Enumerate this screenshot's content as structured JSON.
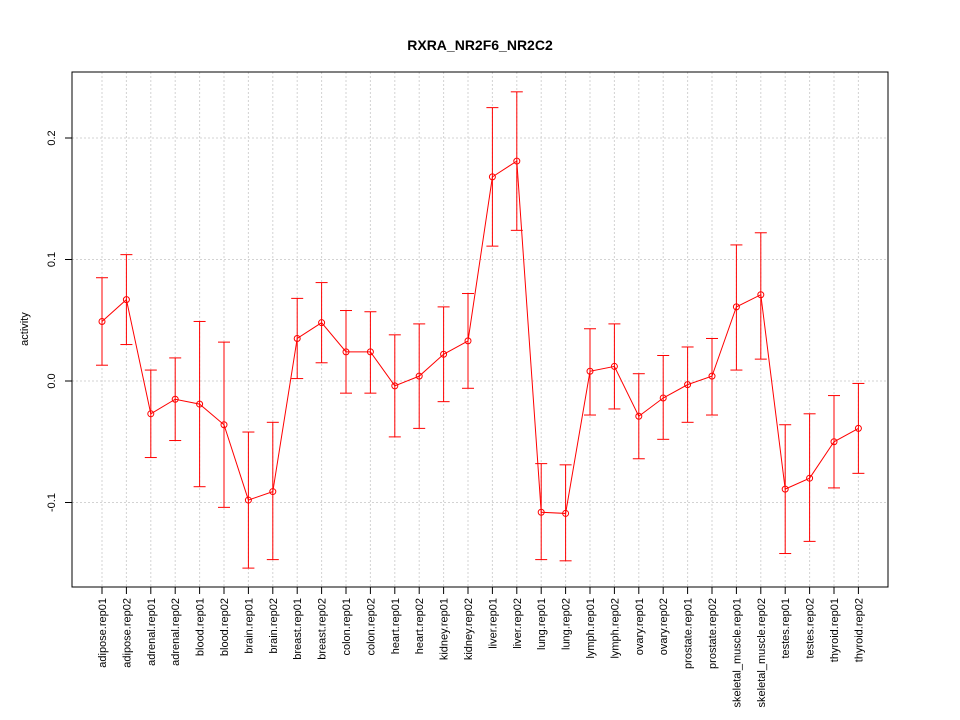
{
  "chart_data": {
    "type": "line",
    "title": "RXRA_NR2F6_NR2C2",
    "xlabel": "",
    "ylabel": "activity",
    "ylim": [
      -0.17,
      0.255
    ],
    "yticks": [
      -0.1,
      0.0,
      0.1,
      0.2
    ],
    "ytick_labels": [
      "-0.1",
      "0.0",
      "0.1",
      "0.2"
    ],
    "grid": true,
    "legend": "none",
    "color": "#ff0000",
    "categories": [
      "adipose.rep01",
      "adipose.rep02",
      "adrenal.rep01",
      "adrenal.rep02",
      "blood.rep01",
      "blood.rep02",
      "brain.rep01",
      "brain.rep02",
      "breast.rep01",
      "breast.rep02",
      "colon.rep01",
      "colon.rep02",
      "heart.rep01",
      "heart.rep02",
      "kidney.rep01",
      "kidney.rep02",
      "liver.rep01",
      "liver.rep02",
      "lung.rep01",
      "lung.rep02",
      "lymph.rep01",
      "lymph.rep02",
      "ovary.rep01",
      "ovary.rep02",
      "prostate.rep01",
      "prostate.rep02",
      "skeletal_muscle.rep01",
      "skeletal_muscle.rep02",
      "testes.rep01",
      "testes.rep02",
      "thyroid.rep01",
      "thyroid.rep02"
    ],
    "values": [
      0.049,
      0.067,
      -0.027,
      -0.015,
      -0.019,
      -0.036,
      -0.098,
      -0.091,
      0.035,
      0.048,
      0.024,
      0.024,
      -0.004,
      0.004,
      0.022,
      0.033,
      0.168,
      0.181,
      -0.108,
      -0.109,
      0.008,
      0.012,
      -0.029,
      -0.014,
      -0.003,
      0.004,
      0.061,
      0.071,
      -0.089,
      -0.08,
      -0.05,
      -0.039
    ],
    "upper": [
      0.085,
      0.104,
      0.009,
      0.019,
      0.049,
      0.032,
      -0.042,
      -0.034,
      0.068,
      0.081,
      0.058,
      0.057,
      0.038,
      0.047,
      0.061,
      0.072,
      0.225,
      0.238,
      -0.068,
      -0.069,
      0.043,
      0.047,
      0.006,
      0.021,
      0.028,
      0.035,
      0.112,
      0.122,
      -0.036,
      -0.027,
      -0.012,
      -0.002
    ],
    "lower": [
      0.013,
      0.03,
      -0.063,
      -0.049,
      -0.087,
      -0.104,
      -0.154,
      -0.147,
      0.002,
      0.015,
      -0.01,
      -0.01,
      -0.046,
      -0.039,
      -0.017,
      -0.006,
      0.111,
      0.124,
      -0.147,
      -0.148,
      -0.028,
      -0.023,
      -0.064,
      -0.048,
      -0.034,
      -0.028,
      0.009,
      0.018,
      -0.142,
      -0.132,
      -0.088,
      -0.076
    ]
  }
}
